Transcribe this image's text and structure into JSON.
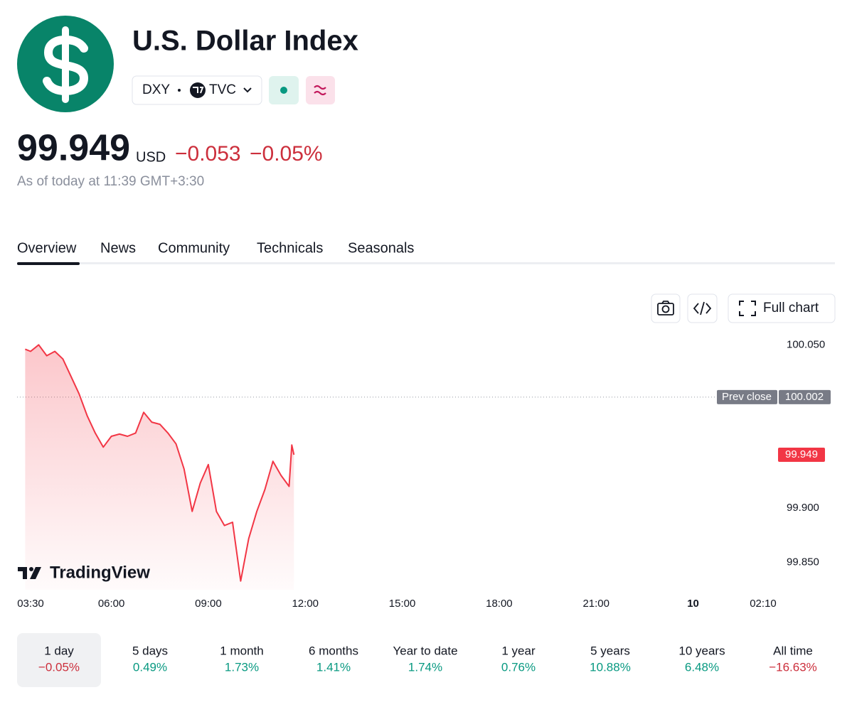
{
  "header": {
    "title": "U.S. Dollar Index",
    "symbol": "DXY",
    "exchange": "TVC",
    "price": "99.949",
    "currency": "USD",
    "change": "−0.053",
    "change_percent": "−0.05%",
    "as_of": "As of today at 11:39 GMT+3:30"
  },
  "tabs": [
    "Overview",
    "News",
    "Community",
    "Technicals",
    "Seasonals"
  ],
  "toolbar": {
    "full_chart": "Full chart"
  },
  "watermark": "TradingView",
  "chart_data": {
    "type": "line",
    "x": [
      "03:20",
      "03:30",
      "03:45",
      "04:00",
      "04:15",
      "04:30",
      "04:45",
      "05:00",
      "05:15",
      "05:30",
      "05:45",
      "06:00",
      "06:15",
      "06:30",
      "06:45",
      "07:00",
      "07:15",
      "07:30",
      "07:45",
      "08:00",
      "08:15",
      "08:30",
      "08:45",
      "09:00",
      "09:15",
      "09:30",
      "09:45",
      "10:00",
      "10:15",
      "10:30",
      "10:45",
      "11:00",
      "11:15",
      "11:30",
      "11:35",
      "11:39"
    ],
    "series": [
      {
        "color": "#f23645",
        "values": [
          100.046,
          100.044,
          100.05,
          100.04,
          100.044,
          100.037,
          100.021,
          100.005,
          99.985,
          99.969,
          99.956,
          99.966,
          99.968,
          99.966,
          99.969,
          99.988,
          99.979,
          99.977,
          99.969,
          99.959,
          99.936,
          99.897,
          99.923,
          99.94,
          99.897,
          99.884,
          99.887,
          99.833,
          99.872,
          99.897,
          99.917,
          99.943,
          99.93,
          99.92,
          99.958,
          99.949
        ]
      }
    ],
    "ylim": [
      99.825,
      100.06
    ],
    "yticks": [
      {
        "value": 100.05,
        "label": "100.050"
      },
      {
        "value": 99.9,
        "label": "99.900"
      },
      {
        "value": 99.85,
        "label": "99.850"
      }
    ],
    "xticks": [
      "03:30",
      "06:00",
      "09:00",
      "12:00",
      "15:00",
      "18:00",
      "21:00",
      "10",
      "02:10"
    ],
    "prev_close": 100.002,
    "prev_close_label": "Prev close"
  },
  "periods": [
    {
      "label": "1 day",
      "change": "−0.05%"
    },
    {
      "label": "5 days",
      "change": "0.49%"
    },
    {
      "label": "1 month",
      "change": "1.73%"
    },
    {
      "label": "6 months",
      "change": "1.41%"
    },
    {
      "label": "Year to date",
      "change": "1.74%"
    },
    {
      "label": "1 year",
      "change": "0.76%"
    },
    {
      "label": "5 years",
      "change": "10.88%"
    },
    {
      "label": "10 years",
      "change": "6.48%"
    },
    {
      "label": "All time",
      "change": "−16.63%"
    }
  ]
}
